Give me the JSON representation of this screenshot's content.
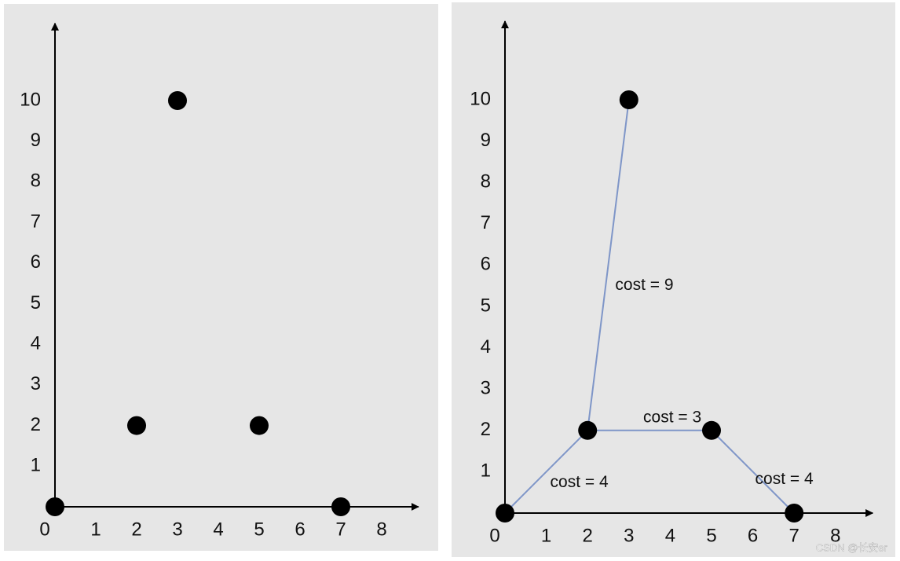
{
  "chart_data": [
    {
      "type": "scatter",
      "x": [
        0,
        2,
        3,
        5,
        7
      ],
      "y": [
        0,
        2,
        10,
        2,
        0
      ],
      "color": "#000000",
      "xlim": [
        0,
        8.9
      ],
      "ylim": [
        0,
        11.9
      ],
      "xticks": [
        0,
        1,
        2,
        3,
        4,
        5,
        6,
        7,
        8
      ],
      "yticks": [
        1,
        2,
        3,
        4,
        5,
        6,
        7,
        8,
        9,
        10
      ]
    },
    {
      "type": "scatter",
      "x": [
        0,
        2,
        3,
        5,
        7
      ],
      "y": [
        0,
        2,
        10,
        2,
        0
      ],
      "color": "#000000",
      "xlim": [
        0,
        8.9
      ],
      "ylim": [
        0,
        11.9
      ],
      "xticks": [
        0,
        1,
        2,
        3,
        4,
        5,
        6,
        7,
        8
      ],
      "yticks": [
        1,
        2,
        3,
        4,
        5,
        6,
        7,
        8,
        9,
        10
      ],
      "edge_color": "#7f96c8",
      "edges": [
        {
          "from": 0,
          "to": 1,
          "label": "cost = 4"
        },
        {
          "from": 1,
          "to": 2,
          "label": "cost = 9"
        },
        {
          "from": 1,
          "to": 3,
          "label": "cost = 3"
        },
        {
          "from": 3,
          "to": 4,
          "label": "cost = 4"
        }
      ]
    }
  ],
  "watermark": "CSDN @长安er"
}
